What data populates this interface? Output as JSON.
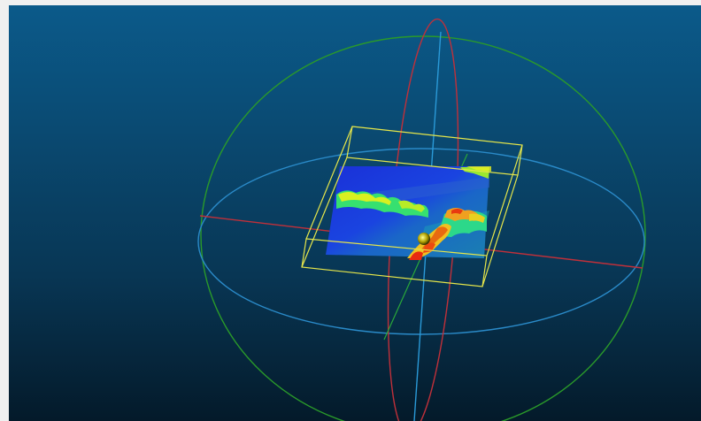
{
  "window": {
    "background_top": "#0b5a8a",
    "background_bottom": "#041a2a",
    "frame_color": "#f0f0f0"
  },
  "scene": {
    "objects": [
      {
        "name": "trackball-sphere-x-circle",
        "color": "#2a8a2a"
      },
      {
        "name": "trackball-sphere-y-circle",
        "color": "#c0303a"
      },
      {
        "name": "trackball-sphere-z-circle",
        "color": "#2a8ac8"
      },
      {
        "name": "bounding-box",
        "color": "#e6e64a"
      },
      {
        "name": "point-cloud-heightmap",
        "colormap": [
          "#1a2cd6",
          "#1aa0e0",
          "#2ce0a0",
          "#e8f020",
          "#f08a10",
          "#e81a10"
        ]
      },
      {
        "name": "pivot-point",
        "color": "#e8e850"
      }
    ]
  }
}
